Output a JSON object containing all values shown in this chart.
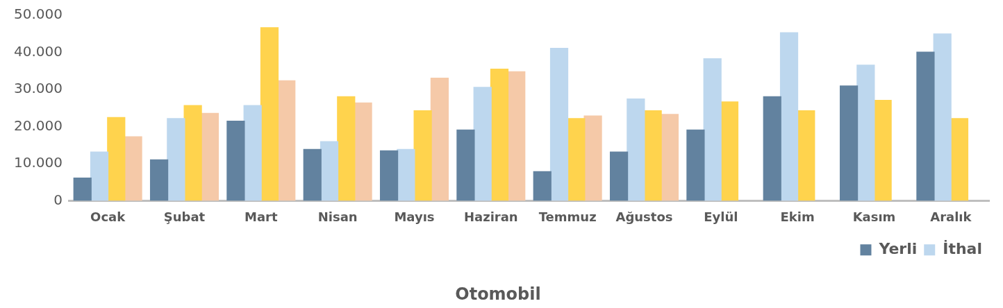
{
  "chart_data": {
    "type": "bar",
    "title": "Otomobil",
    "categories": [
      "Ocak",
      "Şubat",
      "Mart",
      "Nisan",
      "Mayıs",
      "Haziran",
      "Temmuz",
      "Ağustos",
      "Eylül",
      "Ekim",
      "Kasım",
      "Aralık"
    ],
    "series": [
      {
        "name": "Yerli",
        "color": "#62829f",
        "values": [
          6300,
          11200,
          21600,
          14000,
          13600,
          19200,
          8000,
          13300,
          19200,
          28200,
          31100,
          40200
        ]
      },
      {
        "name": "İthal",
        "color": "#bdd7ee",
        "values": [
          13300,
          22300,
          25800,
          16100,
          14000,
          30700,
          41200,
          27600,
          38400,
          45400,
          36700,
          45100
        ]
      },
      {
        "color": "#ffd34d",
        "values": [
          22600,
          25800,
          46800,
          28200,
          24400,
          35600,
          22300,
          24400,
          26800,
          24400,
          27200,
          22300
        ]
      },
      {
        "color": "#f5c9a8",
        "values": [
          17400,
          23700,
          32500,
          26500,
          33200,
          34900,
          23000,
          23400,
          null,
          null,
          null,
          null
        ]
      }
    ],
    "ylim": [
      0,
      50000
    ],
    "yticks": [
      0,
      {
        "value": 10000,
        "label": "10.000"
      },
      {
        "value": 20000,
        "label": "20.000"
      },
      {
        "value": 30000,
        "label": "30.000"
      },
      {
        "value": 40000,
        "label": "40.000"
      },
      {
        "value": 50000,
        "label": "50.000"
      }
    ],
    "grid": false,
    "legend": "bottom right"
  }
}
